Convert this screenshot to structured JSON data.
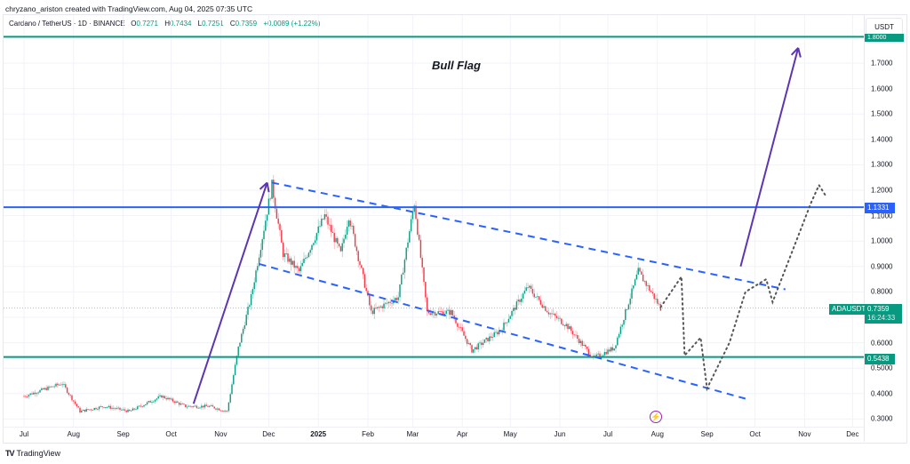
{
  "header": {
    "attribution": "chryzano_ariston created with TradingView.com, Aug 04, 2025 07:35 UTC",
    "symbol_description": "Cardano / TetherUS · 1D · BINANCE",
    "ohlc": {
      "open_label": "O",
      "open": "0.7271",
      "high_label": "H",
      "high": "0.7434",
      "low_label": "L",
      "low": "0.7251",
      "close_label": "C",
      "close": "0.7359",
      "change": "+0.0089 (+1.22%)"
    }
  },
  "price_axis": {
    "unit": "USDT",
    "ticks": [
      "1.7000",
      "1.6000",
      "1.5000",
      "1.4000",
      "1.3000",
      "1.2000",
      "1.1000",
      "1.0000",
      "0.9000",
      "0.8000",
      "0.6000",
      "0.5000",
      "0.4000",
      "0.3000"
    ],
    "badges": {
      "top_line": "1.8000",
      "resistance": "1.1331",
      "symbol": "ADAUSDT",
      "last_price": "0.7359",
      "countdown": "16:24:33",
      "support": "0.5438"
    }
  },
  "time_axis": {
    "labels": [
      "Jul",
      "Aug",
      "Sep",
      "Oct",
      "Nov",
      "Dec",
      "2025",
      "Feb",
      "Mar",
      "Apr",
      "May",
      "Jun",
      "Jul",
      "Aug",
      "Sep",
      "Oct",
      "Nov",
      "Dec"
    ]
  },
  "annotations": {
    "title": "Bull Flag",
    "event_icon": "lightning-icon"
  },
  "footer": {
    "logo": "TV",
    "brand": "TradingView"
  },
  "colors": {
    "up": "#089981",
    "down": "#f23645",
    "support_line": "#089981",
    "resistance_line": "#2962ff",
    "channel": "#2962ff",
    "arrow": "#5e35b1",
    "projection": "#555555"
  },
  "chart_data": {
    "type": "candlestick",
    "title": "Cardano / TetherUS · 1D · BINANCE — Bull Flag",
    "xlabel": "",
    "ylabel": "USDT",
    "ylim": [
      0.27,
      1.85
    ],
    "x_range": [
      "2024-07-01",
      "2025-12-31"
    ],
    "horizontal_lines": [
      {
        "label": "top",
        "value": 1.8,
        "color": "#089981"
      },
      {
        "label": "resistance",
        "value": 1.1331,
        "color": "#2962ff"
      },
      {
        "label": "support",
        "value": 0.5438,
        "color": "#089981"
      }
    ],
    "last_price": 0.7359,
    "series": [
      {
        "name": "ADAUSDT approx path (date, price)",
        "points": [
          [
            "2024-07-01",
            0.39
          ],
          [
            "2024-07-15",
            0.42
          ],
          [
            "2024-07-25",
            0.44
          ],
          [
            "2024-08-05",
            0.33
          ],
          [
            "2024-08-20",
            0.35
          ],
          [
            "2024-09-05",
            0.33
          ],
          [
            "2024-09-25",
            0.39
          ],
          [
            "2024-10-10",
            0.35
          ],
          [
            "2024-10-25",
            0.35
          ],
          [
            "2024-11-05",
            0.33
          ],
          [
            "2024-11-12",
            0.58
          ],
          [
            "2024-11-20",
            0.78
          ],
          [
            "2024-11-28",
            1.05
          ],
          [
            "2024-12-03",
            1.22
          ],
          [
            "2024-12-10",
            0.95
          ],
          [
            "2024-12-20",
            0.88
          ],
          [
            "2025-01-05",
            1.1
          ],
          [
            "2025-01-15",
            0.95
          ],
          [
            "2025-01-20",
            1.1
          ],
          [
            "2025-02-03",
            0.72
          ],
          [
            "2025-02-20",
            0.78
          ],
          [
            "2025-03-02",
            1.15
          ],
          [
            "2025-03-10",
            0.72
          ],
          [
            "2025-03-25",
            0.72
          ],
          [
            "2025-04-07",
            0.57
          ],
          [
            "2025-04-25",
            0.65
          ],
          [
            "2025-05-12",
            0.82
          ],
          [
            "2025-05-25",
            0.72
          ],
          [
            "2025-06-05",
            0.67
          ],
          [
            "2025-06-22",
            0.54
          ],
          [
            "2025-07-05",
            0.58
          ],
          [
            "2025-07-20",
            0.88
          ],
          [
            "2025-07-28",
            0.8
          ],
          [
            "2025-08-03",
            0.7359
          ]
        ]
      },
      {
        "name": "Projected path (dotted)",
        "points": [
          [
            "2025-08-03",
            0.74
          ],
          [
            "2025-08-16",
            0.86
          ],
          [
            "2025-08-18",
            0.55
          ],
          [
            "2025-08-28",
            0.62
          ],
          [
            "2025-09-01",
            0.42
          ],
          [
            "2025-09-15",
            0.6
          ],
          [
            "2025-09-25",
            0.8
          ],
          [
            "2025-10-08",
            0.85
          ],
          [
            "2025-10-12",
            0.76
          ],
          [
            "2025-11-05",
            1.15
          ],
          [
            "2025-11-10",
            1.22
          ],
          [
            "2025-11-14",
            1.18
          ]
        ]
      }
    ],
    "trendlines": [
      {
        "name": "channel upper",
        "from": [
          "2024-12-03",
          1.23
        ],
        "to": [
          "2025-10-20",
          0.81
        ],
        "style": "dashed"
      },
      {
        "name": "channel lower",
        "from": [
          "2024-11-25",
          0.91
        ],
        "to": [
          "2025-09-25",
          0.38
        ],
        "style": "dashed"
      },
      {
        "name": "flagpole arrow",
        "from": [
          "2024-10-15",
          0.36
        ],
        "to": [
          "2024-11-30",
          1.23
        ],
        "style": "arrow"
      },
      {
        "name": "breakout arrow",
        "from": [
          "2025-09-22",
          0.9
        ],
        "to": [
          "2025-10-28",
          1.76
        ],
        "style": "arrow"
      }
    ]
  }
}
